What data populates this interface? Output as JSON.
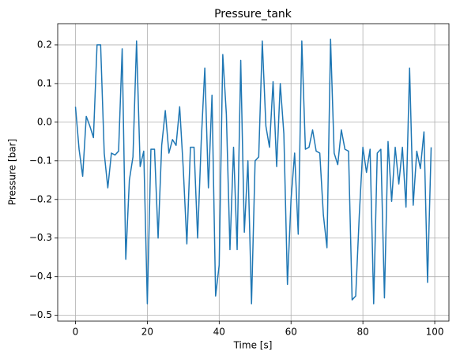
{
  "chart_data": {
    "type": "line",
    "title": "Pressure_tank",
    "xlabel": "Time [s]",
    "ylabel": "Pressure [bar]",
    "x": [
      0,
      1,
      2,
      3,
      4,
      5,
      6,
      7,
      8,
      9,
      10,
      11,
      12,
      13,
      14,
      15,
      16,
      17,
      18,
      19,
      20,
      21,
      22,
      23,
      24,
      25,
      26,
      27,
      28,
      29,
      30,
      31,
      32,
      33,
      34,
      35,
      36,
      37,
      38,
      39,
      40,
      41,
      42,
      43,
      44,
      45,
      46,
      47,
      48,
      49,
      50,
      51,
      52,
      53,
      54,
      55,
      56,
      57,
      58,
      59,
      60,
      61,
      62,
      63,
      64,
      65,
      66,
      67,
      68,
      69,
      70,
      71,
      72,
      73,
      74,
      75,
      76,
      77,
      78,
      79,
      80,
      81,
      82,
      83,
      84,
      85,
      86,
      87,
      88,
      89,
      90,
      91,
      92,
      93,
      94,
      95,
      96,
      97,
      98,
      99
    ],
    "series": [
      {
        "name": "Pressure_tank",
        "color": "#1f77b4",
        "values": [
          0.04,
          -0.07,
          -0.14,
          0.015,
          -0.01,
          -0.04,
          0.2,
          0.2,
          -0.08,
          -0.17,
          -0.08,
          -0.085,
          -0.075,
          0.19,
          -0.355,
          -0.15,
          -0.09,
          0.21,
          -0.115,
          -0.075,
          -0.47,
          -0.07,
          -0.07,
          -0.3,
          -0.06,
          0.03,
          -0.08,
          -0.045,
          -0.06,
          0.04,
          -0.12,
          -0.315,
          -0.065,
          -0.065,
          -0.3,
          -0.05,
          0.14,
          -0.17,
          0.07,
          -0.45,
          -0.37,
          0.175,
          0.02,
          -0.33,
          -0.065,
          -0.33,
          0.16,
          -0.285,
          -0.1,
          -0.47,
          -0.1,
          -0.09,
          0.21,
          -0.01,
          -0.065,
          0.105,
          -0.115,
          0.1,
          -0.03,
          -0.42,
          -0.2,
          -0.08,
          -0.29,
          0.21,
          -0.07,
          -0.065,
          -0.02,
          -0.075,
          -0.08,
          -0.24,
          -0.325,
          0.215,
          -0.08,
          -0.11,
          -0.02,
          -0.07,
          -0.075,
          -0.46,
          -0.45,
          -0.24,
          -0.065,
          -0.13,
          -0.07,
          -0.47,
          -0.08,
          -0.07,
          -0.455,
          -0.05,
          -0.205,
          -0.065,
          -0.16,
          -0.065,
          -0.22,
          0.14,
          -0.215,
          -0.075,
          -0.12,
          -0.025,
          -0.415,
          -0.065
        ]
      }
    ],
    "xlim": [
      -4.95,
      103.95
    ],
    "xticks": [
      0,
      20,
      40,
      60,
      80,
      100
    ],
    "ylim": [
      -0.515,
      0.255
    ],
    "yticks": [
      {
        "value": -0.5,
        "label": "−0.5"
      },
      {
        "value": -0.4,
        "label": "−0.4"
      },
      {
        "value": -0.3,
        "label": "−0.3"
      },
      {
        "value": -0.2,
        "label": "−0.2"
      },
      {
        "value": -0.1,
        "label": "−0.1"
      },
      {
        "value": 0,
        "label": "0.0"
      },
      0.1,
      0.2
    ],
    "grid": true
  }
}
